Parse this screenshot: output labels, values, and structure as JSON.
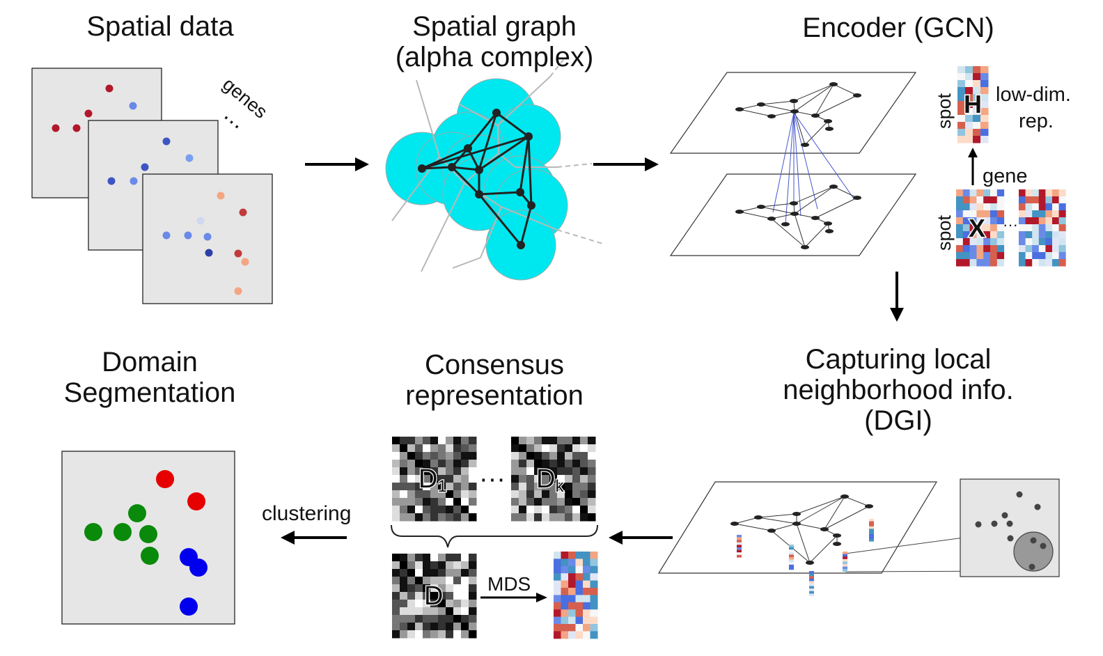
{
  "panels": {
    "spatial_data": {
      "title": "Spatial data",
      "genes_label": "genes",
      "ellipsis": "⋯"
    },
    "spatial_graph": {
      "title_line1": "Spatial graph",
      "title_line2": "(alpha complex)"
    },
    "encoder": {
      "title": "Encoder (GCN)",
      "spot_label_top": "spot",
      "h_letter": "H",
      "lowdim_line1": "low-dim.",
      "lowdim_line2": "rep.",
      "gene_label": "gene",
      "spot_label_bottom": "spot",
      "x_letter": "X",
      "x_ellipsis": "···"
    },
    "dgi": {
      "title_line1": "Capturing local",
      "title_line2": "neighborhood info.",
      "title_line3": "(DGI)"
    },
    "consensus": {
      "title_line1": "Consensus",
      "title_line2": "representation",
      "d1_letter": "D",
      "d1_sub": "1",
      "dk_letter": "D",
      "dk_sub": "k",
      "dots": "···",
      "d_letter": "D",
      "mds_label": "MDS"
    },
    "domain": {
      "title_line1": "Domain",
      "title_line2": "Segmentation",
      "clustering_label": "clustering"
    }
  },
  "colors": {
    "cyan": "#00e8ef",
    "red": "#e60000",
    "green": "#0a8a0a",
    "blue": "#0000ee",
    "dark_red": "#b2182b",
    "mid_blue": "#4a6fe0",
    "panel_gray": "#e6e6e6"
  },
  "icons": [
    "arrow-right-icon",
    "arrow-down-icon",
    "arrow-left-icon",
    "arrow-up-icon",
    "brace-icon"
  ]
}
